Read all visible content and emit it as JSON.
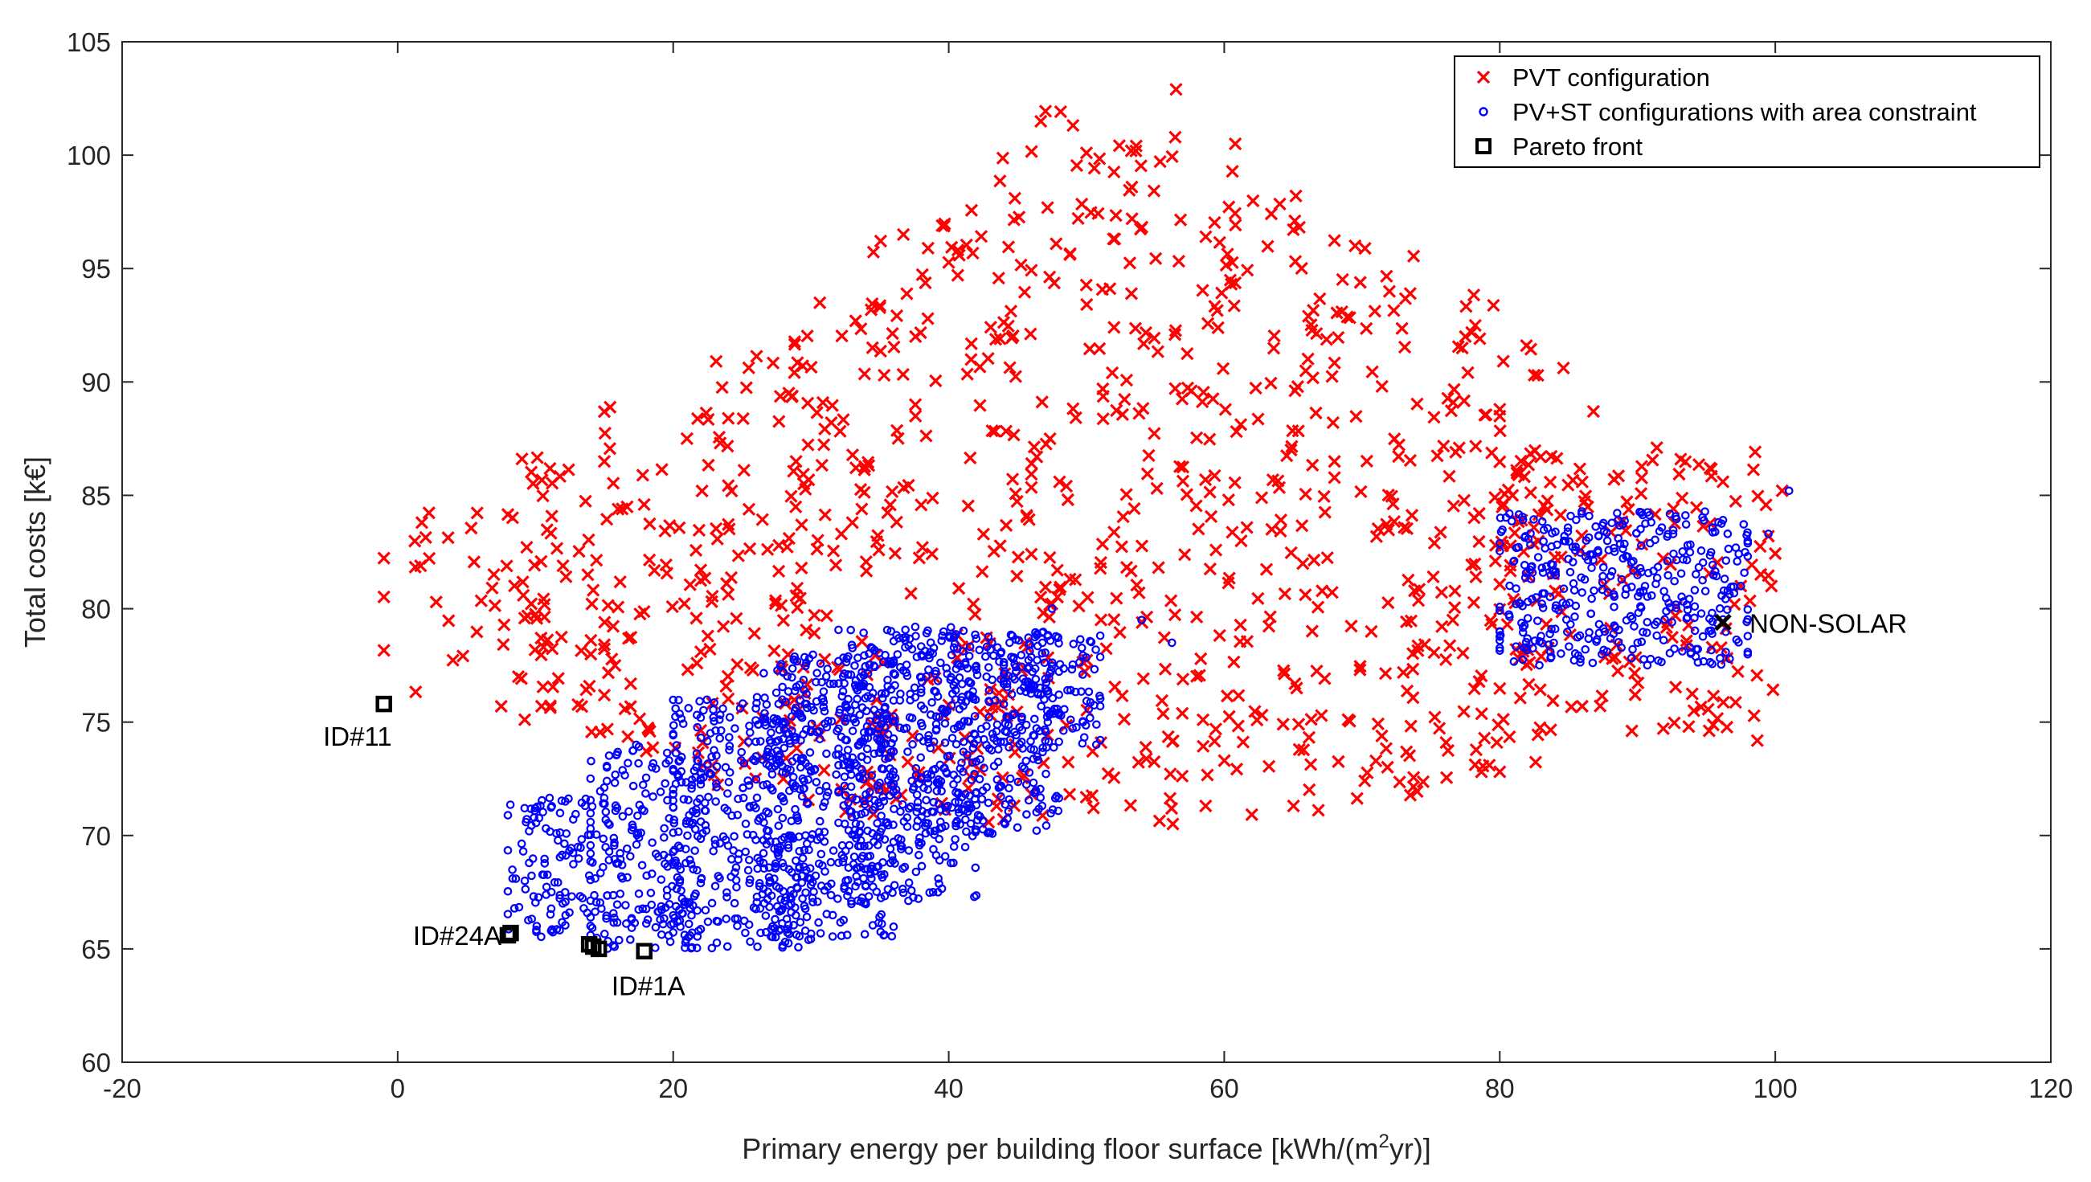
{
  "chart_data": {
    "type": "scatter",
    "title": "",
    "xlabel": "Primary energy per building floor surface [kWh/(m2yr)]",
    "xlabel_parts": [
      "Primary energy per building floor surface [kWh/(m",
      "2",
      "yr)]"
    ],
    "ylabel": "Total costs [k€]",
    "xlim": [
      -20,
      120
    ],
    "ylim": [
      60,
      105
    ],
    "xticks": [
      -20,
      0,
      20,
      40,
      60,
      80,
      100,
      120
    ],
    "yticks": [
      60,
      65,
      70,
      75,
      80,
      85,
      90,
      95,
      100,
      105
    ],
    "grid": false,
    "legend_position": "top-right",
    "colors": {
      "pvt": "#ff0000",
      "pvst": "#0000ff",
      "pareto": "#000000",
      "axis": "#262626"
    },
    "series": [
      {
        "name": "PVT configuration",
        "marker": "x",
        "clusters": [
          {
            "x": [
              -1,
              12
            ],
            "y": [
              75.5,
              85
            ],
            "n": 45
          },
          {
            "x": [
              8,
              16
            ],
            "y": [
              74,
              87
            ],
            "n": 55
          },
          {
            "x": [
              15,
              24
            ],
            "y": [
              73,
              89
            ],
            "n": 70
          },
          {
            "x": [
              22,
              31
            ],
            "y": [
              72,
              91.5
            ],
            "n": 80
          },
          {
            "x": [
              28,
              38
            ],
            "y": [
              71,
              94
            ],
            "n": 90
          },
          {
            "x": [
              34,
              46
            ],
            "y": [
              70.5,
              98
            ],
            "n": 95
          },
          {
            "x": [
              40,
              52
            ],
            "y": [
              70.5,
              100
            ],
            "n": 90
          },
          {
            "x": [
              46,
              57
            ],
            "y": [
              70.5,
              103
            ],
            "n": 90
          },
          {
            "x": [
              52,
              62
            ],
            "y": [
              70.5,
              100.5
            ],
            "n": 85
          },
          {
            "x": [
              58,
              68
            ],
            "y": [
              71,
              98
            ],
            "n": 80
          },
          {
            "x": [
              63,
              74
            ],
            "y": [
              71,
              96
            ],
            "n": 75
          },
          {
            "x": [
              68,
              80
            ],
            "y": [
              72,
              94
            ],
            "n": 70
          },
          {
            "x": [
              74,
              85
            ],
            "y": [
              73,
              92
            ],
            "n": 70
          },
          {
            "x": [
              80,
              100
            ],
            "y": [
              74,
              87
            ],
            "n": 150
          }
        ],
        "points": [
          [
            56.5,
            102.9
          ],
          [
            50,
            100.1
          ],
          [
            60.8,
            100.5
          ],
          [
            44.8,
            98.1
          ],
          [
            65.2,
            98.2
          ],
          [
            38.5,
            95.9
          ],
          [
            69.5,
            96.0
          ],
          [
            73.5,
            93.9
          ],
          [
            77.5,
            92.0
          ],
          [
            82.5,
            90.3
          ],
          [
            86.8,
            88.7
          ],
          [
            91.4,
            87.1
          ],
          [
            96.2,
            85.6
          ],
          [
            100.5,
            85.2
          ],
          [
            99.5,
            83.2
          ],
          [
            97.5,
            81.0
          ]
        ]
      },
      {
        "name": "PV+ST configurations with area constraint",
        "marker": "o",
        "clusters": [
          {
            "x": [
              8,
              14
            ],
            "y": [
              65.5,
              71.8
            ],
            "n": 110
          },
          {
            "x": [
              14,
              22
            ],
            "y": [
              65,
              74
            ],
            "n": 220
          },
          {
            "x": [
              20,
              30
            ],
            "y": [
              65,
              76
            ],
            "n": 320
          },
          {
            "x": [
              26,
              36
            ],
            "y": [
              65.5,
              78
            ],
            "n": 380
          },
          {
            "x": [
              32,
              42
            ],
            "y": [
              67,
              79.2
            ],
            "n": 380
          },
          {
            "x": [
              38,
              48
            ],
            "y": [
              70,
              79
            ],
            "n": 280
          },
          {
            "x": [
              44,
              51
            ],
            "y": [
              74,
              79
            ],
            "n": 120
          },
          {
            "x": [
              80,
              98
            ],
            "y": [
              77.5,
              84.3
            ],
            "n": 400
          }
        ],
        "points": [
          [
            101,
            85.2
          ],
          [
            99.5,
            83.3
          ],
          [
            97.5,
            81.0
          ],
          [
            47.5,
            80.0
          ],
          [
            54,
            79.5
          ],
          [
            56.2,
            78.5
          ]
        ]
      },
      {
        "name": "Pareto front",
        "marker": "s",
        "points": [
          [
            -1,
            75.8
          ],
          [
            8,
            65.6
          ],
          [
            8.2,
            65.7
          ],
          [
            13.9,
            65.2
          ],
          [
            14.2,
            65.1
          ],
          [
            14.6,
            65.0
          ],
          [
            17.9,
            64.9
          ]
        ]
      }
    ],
    "non_solar_point": [
      96.2,
      79.4
    ],
    "annotations": [
      {
        "text": "ID#11",
        "x": -1,
        "y": 75.8,
        "anchor": "below-left"
      },
      {
        "text": "ID#24A",
        "x": 8,
        "y": 65.6,
        "anchor": "left"
      },
      {
        "text": "ID#1A",
        "x": 17.9,
        "y": 64.9,
        "anchor": "below"
      },
      {
        "text": "NON-SOLAR",
        "x": 96.2,
        "y": 79.4,
        "anchor": "right"
      }
    ]
  }
}
